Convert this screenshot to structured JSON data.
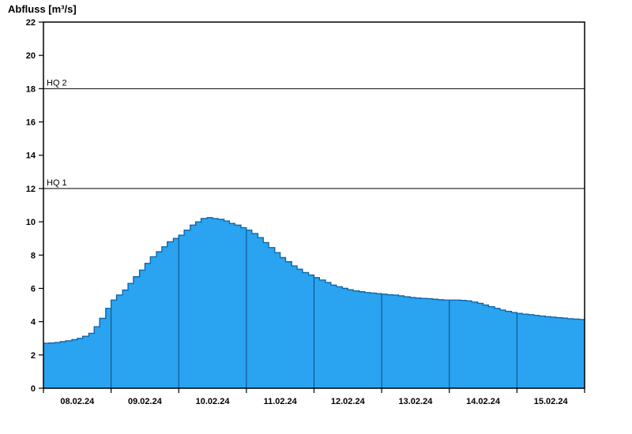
{
  "title": "Abfluss [m³/s]",
  "chart_data": {
    "type": "area",
    "title": "Abfluss [m³/s]",
    "ylabel": "Abfluss [m³/s]",
    "ylim": [
      0,
      22
    ],
    "ytick_step": 2,
    "xlim_days": [
      0,
      8
    ],
    "x_day_labels": [
      "08.02.24",
      "09.02.24",
      "10.02.24",
      "11.02.24",
      "12.02.24",
      "13.02.24",
      "14.02.24",
      "15.02.24"
    ],
    "hq_lines": [
      {
        "label": "HQ 2",
        "value": 18
      },
      {
        "label": "HQ 1",
        "value": 12
      }
    ],
    "legend": "none",
    "grid": "vertical-day-boundaries-inside-area",
    "series": {
      "name": "Abfluss",
      "x_days": [
        0.0,
        0.08,
        0.17,
        0.25,
        0.33,
        0.42,
        0.5,
        0.58,
        0.67,
        0.75,
        0.83,
        0.92,
        1.0,
        1.08,
        1.17,
        1.25,
        1.33,
        1.42,
        1.5,
        1.58,
        1.67,
        1.75,
        1.83,
        1.92,
        2.0,
        2.08,
        2.17,
        2.25,
        2.33,
        2.42,
        2.5,
        2.58,
        2.67,
        2.75,
        2.83,
        2.92,
        3.0,
        3.08,
        3.17,
        3.25,
        3.33,
        3.42,
        3.5,
        3.58,
        3.67,
        3.75,
        3.83,
        3.92,
        4.0,
        4.08,
        4.17,
        4.25,
        4.33,
        4.42,
        4.5,
        4.58,
        4.67,
        4.75,
        4.83,
        4.92,
        5.0,
        5.08,
        5.17,
        5.25,
        5.33,
        5.42,
        5.5,
        5.58,
        5.67,
        5.75,
        5.83,
        5.92,
        6.0,
        6.08,
        6.17,
        6.25,
        6.33,
        6.42,
        6.5,
        6.58,
        6.67,
        6.75,
        6.83,
        6.92,
        7.0,
        7.08,
        7.17,
        7.25,
        7.33,
        7.42,
        7.5,
        7.58,
        7.67,
        7.75,
        7.83,
        7.92,
        8.0
      ],
      "values": [
        2.7,
        2.72,
        2.75,
        2.8,
        2.85,
        2.92,
        3.0,
        3.12,
        3.3,
        3.7,
        4.2,
        4.8,
        5.3,
        5.6,
        5.9,
        6.3,
        6.7,
        7.1,
        7.5,
        7.9,
        8.2,
        8.5,
        8.8,
        9.0,
        9.2,
        9.5,
        9.8,
        10.0,
        10.2,
        10.25,
        10.2,
        10.15,
        10.05,
        9.9,
        9.8,
        9.65,
        9.5,
        9.3,
        9.05,
        8.75,
        8.45,
        8.15,
        7.85,
        7.6,
        7.35,
        7.15,
        6.95,
        6.8,
        6.65,
        6.5,
        6.35,
        6.2,
        6.1,
        6.0,
        5.92,
        5.85,
        5.8,
        5.75,
        5.72,
        5.68,
        5.65,
        5.62,
        5.6,
        5.55,
        5.5,
        5.45,
        5.42,
        5.4,
        5.38,
        5.35,
        5.32,
        5.3,
        5.3,
        5.3,
        5.28,
        5.25,
        5.18,
        5.1,
        5.0,
        4.9,
        4.8,
        4.7,
        4.62,
        4.55,
        4.5,
        4.45,
        4.42,
        4.38,
        4.34,
        4.3,
        4.27,
        4.24,
        4.21,
        4.18,
        4.16,
        4.13,
        4.1
      ]
    },
    "colors": {
      "fill": "#2aa3f0",
      "line": "#0b61a4",
      "day_boundary_line": "#0d4a78",
      "axis": "#000000",
      "hq_line": "#000000",
      "text": "#000000"
    }
  }
}
